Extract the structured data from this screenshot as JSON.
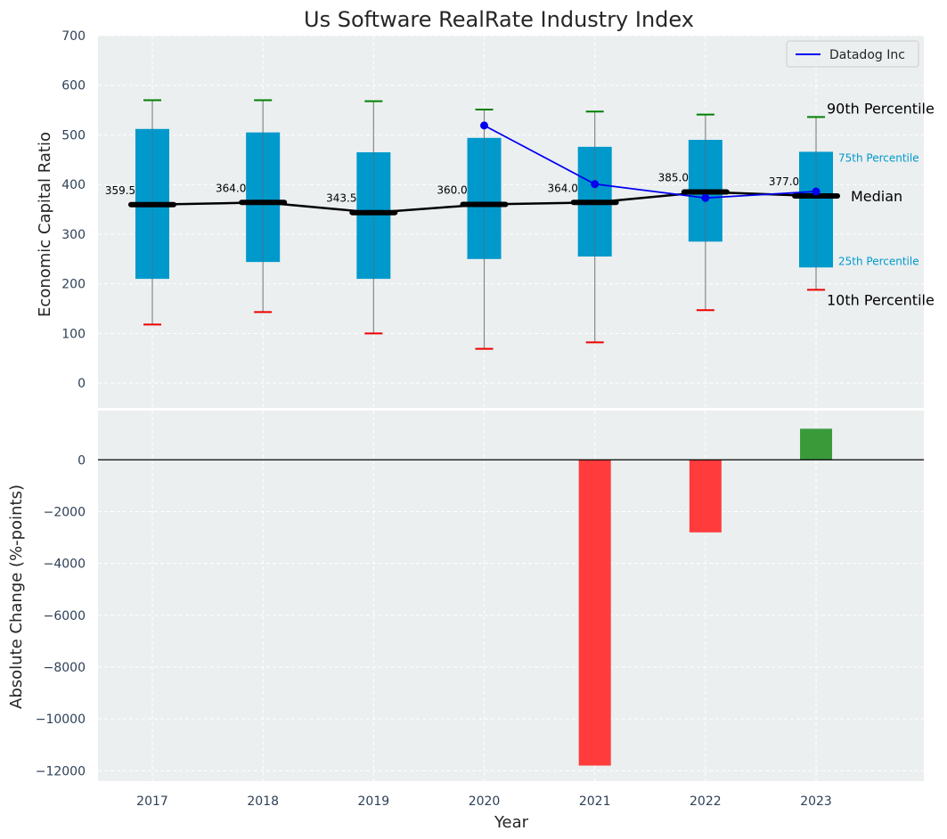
{
  "chart_data": [
    {
      "type": "box",
      "title": "Us Software RealRate Industry Index",
      "ylabel": "Economic Capital Ratio",
      "ylim": [
        -50,
        700
      ],
      "yticks": [
        0,
        100,
        200,
        300,
        400,
        500,
        600,
        700
      ],
      "grid": true,
      "categories": [
        "2017",
        "2018",
        "2019",
        "2020",
        "2021",
        "2022",
        "2023"
      ],
      "p10": [
        118,
        143,
        100,
        69,
        82,
        147,
        188
      ],
      "p25": [
        210,
        244,
        210,
        250,
        255,
        285,
        233
      ],
      "median": [
        359.5,
        364.0,
        343.5,
        360.0,
        364.0,
        385.0,
        377.0
      ],
      "median_labels": [
        "359.5",
        "364.0",
        "343.5",
        "360.0",
        "364.0",
        "385.0",
        "377.0"
      ],
      "p75": [
        512,
        505,
        465,
        494,
        476,
        490,
        466
      ],
      "p90": [
        570,
        570,
        568,
        551,
        547,
        541,
        536
      ],
      "series": [
        {
          "name": "Datadog Inc",
          "x": [
            "2020",
            "2021",
            "2022",
            "2023"
          ],
          "values": [
            519,
            401,
            373,
            386
          ],
          "color": "#0000ee"
        }
      ],
      "legend": {
        "position": "top-right",
        "entries": [
          "Datadog Inc"
        ]
      },
      "annotations": {
        "p90": "90th Percentile",
        "p75": "75th Percentile",
        "median": "Median",
        "p25": "25th Percentile",
        "p10": "10th Percentile"
      },
      "colors": {
        "box": "#0099cc",
        "median": "#000000",
        "p90_cap": "#008000",
        "p10_cap": "#ee0000",
        "series": "#0000ee",
        "background": "#ebeff0"
      }
    },
    {
      "type": "bar",
      "xlabel": "Year",
      "ylabel": "Absolute Change (%-points)",
      "ylim": [
        -12400,
        1900
      ],
      "yticks": [
        0,
        -2000,
        -4000,
        -6000,
        -8000,
        -10000,
        -12000
      ],
      "ytick_labels": [
        "0",
        "−2000",
        "−4000",
        "−6000",
        "−8000",
        "−10000",
        "−12000"
      ],
      "grid": true,
      "categories": [
        "2017",
        "2018",
        "2019",
        "2020",
        "2021",
        "2022",
        "2023"
      ],
      "values": [
        null,
        null,
        null,
        null,
        -11800,
        -2800,
        1200
      ],
      "colors": {
        "negative": "#ff3b3b",
        "positive": "#3a9a3a",
        "background": "#ebeff0"
      }
    }
  ]
}
